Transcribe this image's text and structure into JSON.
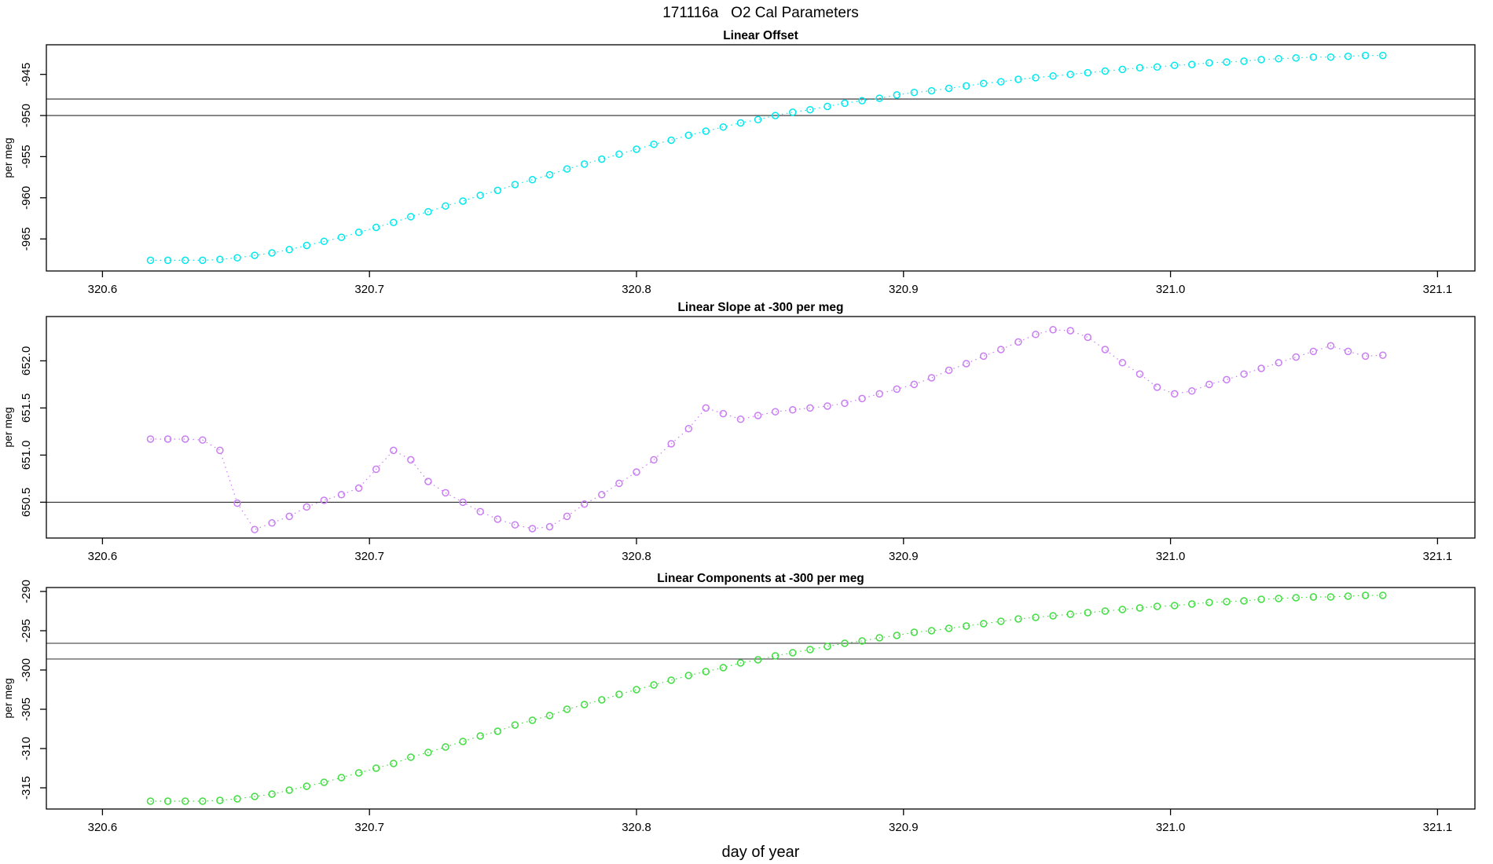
{
  "header": {
    "title": "171116a   O2 Cal Parameters"
  },
  "chart_data": {
    "type": "scatter",
    "xlabel": "day of year",
    "x_ticks": [
      320.6,
      320.7,
      320.8,
      320.9,
      321.0,
      321.1
    ],
    "xlim": [
      320.579,
      321.114
    ],
    "legend": "none",
    "grid": false,
    "shared_x": [
      320.618,
      320.6245,
      320.631,
      320.6375,
      320.644,
      320.6505,
      320.657,
      320.6635,
      320.67,
      320.6765,
      320.683,
      320.6895,
      320.696,
      320.7025,
      320.709,
      320.7155,
      320.722,
      320.7285,
      320.735,
      320.7415,
      320.748,
      320.7545,
      320.761,
      320.7675,
      320.774,
      320.7805,
      320.787,
      320.7935,
      320.8,
      320.8065,
      320.813,
      320.8195,
      320.826,
      320.8325,
      320.839,
      320.8455,
      320.852,
      320.8585,
      320.865,
      320.8715,
      320.878,
      320.8845,
      320.891,
      320.8975,
      320.904,
      320.9105,
      320.917,
      320.9235,
      320.93,
      320.9365,
      320.943,
      320.9495,
      320.956,
      320.9625,
      320.969,
      320.9755,
      320.982,
      320.9885,
      320.995,
      321.0015,
      321.008,
      321.0145,
      321.021,
      321.0275,
      321.034,
      321.0405,
      321.047,
      321.0535,
      321.06,
      321.0665,
      321.073,
      321.0795
    ],
    "panels": [
      {
        "id": "linear-offset",
        "title": "Linear Offset",
        "ylabel": "per meg",
        "color": "#00e8ee",
        "yticks": [
          -945,
          -950,
          -955,
          -960,
          -965
        ],
        "ytick_decimals": 0,
        "ylim": [
          -968.9,
          -941.4
        ],
        "hlines": [
          -948,
          -950
        ],
        "y": [
          -967.6,
          -967.6,
          -967.6,
          -967.6,
          -967.5,
          -967.3,
          -967.0,
          -966.7,
          -966.3,
          -965.8,
          -965.3,
          -964.8,
          -964.2,
          -963.6,
          -963.0,
          -962.3,
          -961.7,
          -961.0,
          -960.4,
          -959.7,
          -959.1,
          -958.4,
          -957.8,
          -957.2,
          -956.5,
          -955.9,
          -955.3,
          -954.7,
          -954.1,
          -953.5,
          -953.0,
          -952.4,
          -951.9,
          -951.4,
          -950.9,
          -950.5,
          -950.0,
          -949.6,
          -949.3,
          -948.9,
          -948.5,
          -948.2,
          -947.9,
          -947.5,
          -947.2,
          -947.0,
          -946.7,
          -946.4,
          -946.1,
          -945.9,
          -945.6,
          -945.4,
          -945.2,
          -945.0,
          -944.8,
          -944.6,
          -944.4,
          -944.2,
          -944.1,
          -943.9,
          -943.8,
          -943.6,
          -943.5,
          -943.4,
          -943.2,
          -943.1,
          -943.0,
          -942.9,
          -942.9,
          -942.8,
          -942.7,
          -942.7
        ]
      },
      {
        "id": "linear-slope",
        "title": "Linear Slope at -300 per meg",
        "ylabel": "per meg",
        "color": "#c97df2",
        "yticks": [
          652.0,
          651.5,
          651.0,
          650.5
        ],
        "ytick_decimals": 1,
        "ylim": [
          650.12,
          652.47
        ],
        "hlines": [
          650.5
        ],
        "y": [
          651.17,
          651.17,
          651.17,
          651.16,
          651.05,
          650.49,
          650.21,
          650.28,
          650.35,
          650.45,
          650.52,
          650.58,
          650.65,
          650.85,
          651.05,
          650.95,
          650.72,
          650.6,
          650.5,
          650.4,
          650.32,
          650.26,
          650.22,
          650.24,
          650.35,
          650.48,
          650.58,
          650.7,
          650.82,
          650.95,
          651.12,
          651.28,
          651.5,
          651.44,
          651.38,
          651.42,
          651.46,
          651.48,
          651.5,
          651.52,
          651.55,
          651.6,
          651.65,
          651.7,
          651.75,
          651.82,
          651.9,
          651.97,
          652.05,
          652.12,
          652.2,
          652.28,
          652.33,
          652.32,
          652.25,
          652.12,
          651.98,
          651.86,
          651.72,
          651.65,
          651.68,
          651.75,
          651.8,
          651.86,
          651.92,
          651.98,
          652.04,
          652.1,
          652.16,
          652.1,
          652.05,
          652.06
        ]
      },
      {
        "id": "linear-components",
        "title": "Linear Components at -300 per meg",
        "ylabel": "per meg",
        "color": "#42dd42",
        "yticks": [
          -290,
          -295,
          -300,
          -305,
          -310,
          -315
        ],
        "ytick_decimals": 0,
        "ylim": [
          -317.7,
          -289.5
        ],
        "hlines": [
          -296.6,
          -298.6
        ],
        "y": [
          -316.7,
          -316.7,
          -316.7,
          -316.7,
          -316.6,
          -316.4,
          -316.1,
          -315.8,
          -315.3,
          -314.8,
          -314.3,
          -313.7,
          -313.1,
          -312.5,
          -311.9,
          -311.1,
          -310.5,
          -309.8,
          -309.1,
          -308.4,
          -307.8,
          -307.0,
          -306.4,
          -305.8,
          -305.0,
          -304.4,
          -303.8,
          -303.1,
          -302.5,
          -301.9,
          -301.3,
          -300.7,
          -300.2,
          -299.7,
          -299.1,
          -298.7,
          -298.2,
          -297.8,
          -297.4,
          -297.0,
          -296.6,
          -296.3,
          -295.9,
          -295.6,
          -295.2,
          -295.0,
          -294.7,
          -294.4,
          -294.1,
          -293.8,
          -293.5,
          -293.3,
          -293.1,
          -292.9,
          -292.7,
          -292.5,
          -292.3,
          -292.1,
          -291.9,
          -291.8,
          -291.6,
          -291.4,
          -291.3,
          -291.2,
          -291.0,
          -290.9,
          -290.8,
          -290.7,
          -290.7,
          -290.6,
          -290.5,
          -290.5
        ]
      }
    ]
  }
}
